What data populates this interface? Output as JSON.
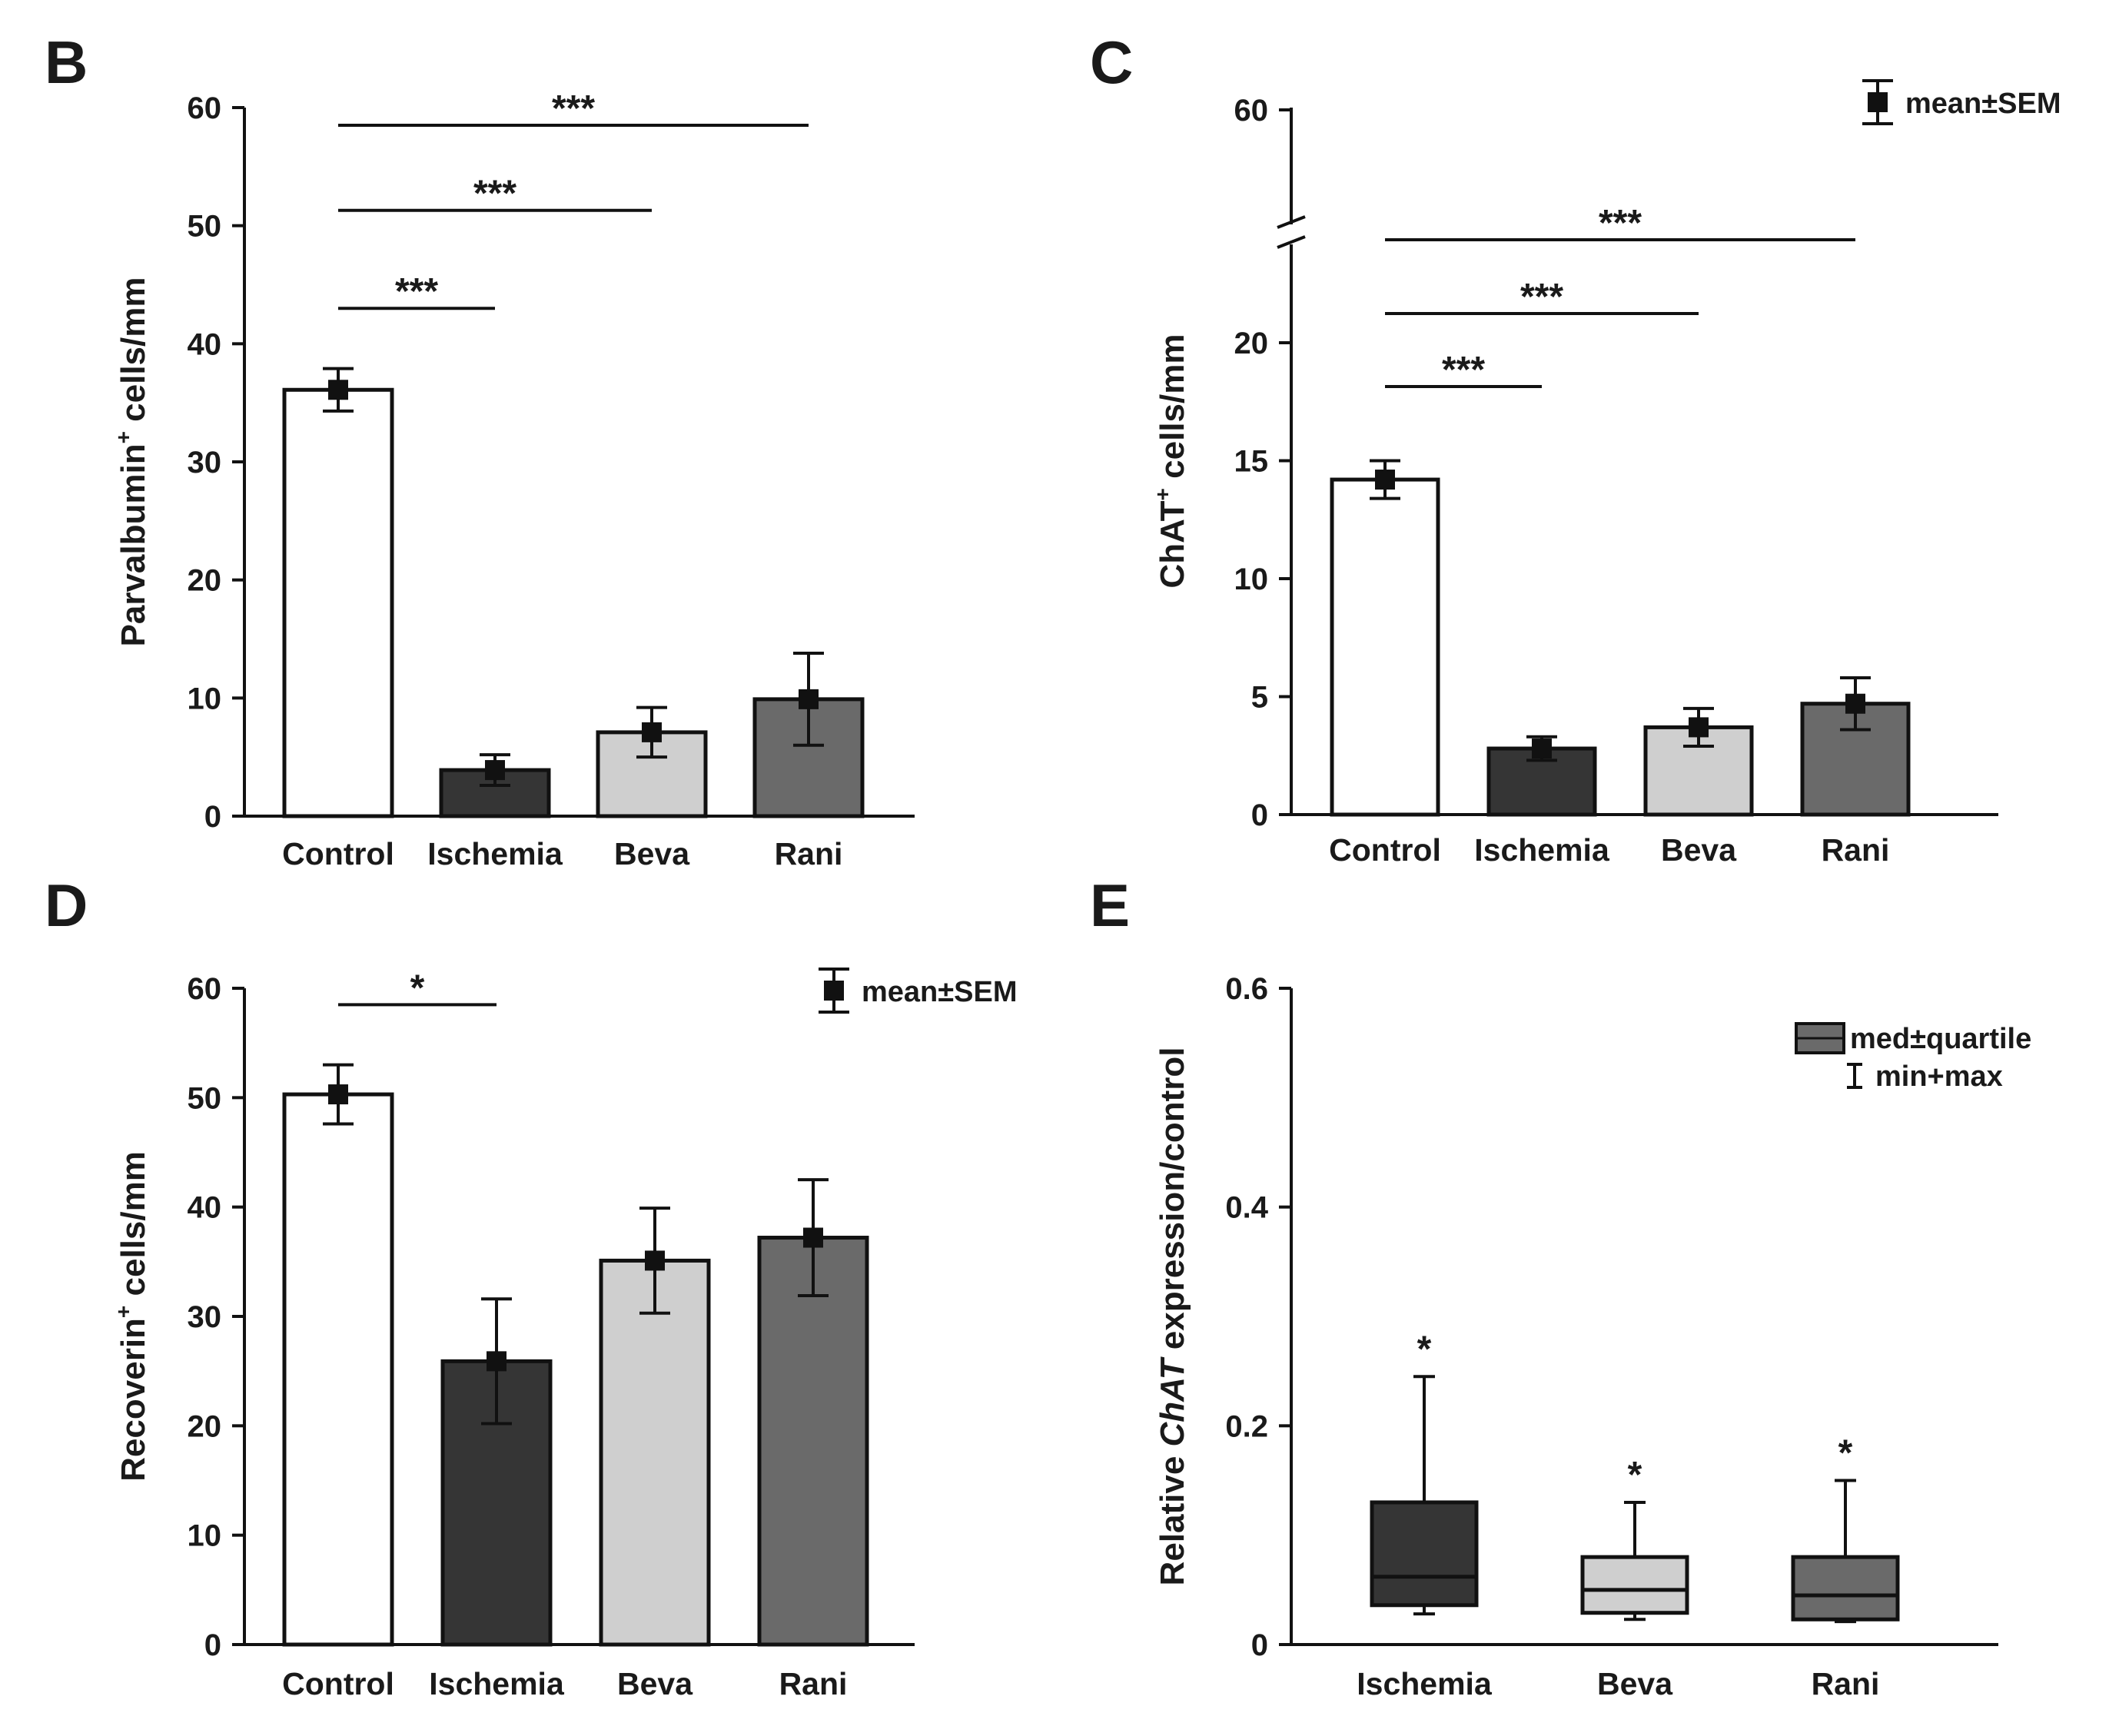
{
  "colors": {
    "Control": "#ffffff",
    "Ischemia": "#353535",
    "Beva": "#cfcfcf",
    "Rani": "#6a6a6a",
    "stroke": "#111111"
  },
  "chart_data": [
    {
      "panel": "B",
      "type": "bar",
      "categories": [
        "Control",
        "Ischemia",
        "Beva",
        "Rani"
      ],
      "values": [
        36.1,
        3.9,
        7.1,
        9.9
      ],
      "sem": [
        1.8,
        1.3,
        2.1,
        3.9
      ],
      "ylabel": "Parvalbumin",
      "ylabel_sup": "+",
      "ylabel_suffix": " cells/mm",
      "ylim": [
        0,
        60
      ],
      "yticks": [
        "0",
        "10",
        "20",
        "30",
        "40",
        "50",
        "60"
      ],
      "significance": [
        {
          "from": "Control",
          "to": "Ischemia",
          "label": "***",
          "y": 43
        },
        {
          "from": "Control",
          "to": "Beva",
          "label": "***",
          "y": 51.3
        },
        {
          "from": "Control",
          "to": "Rani",
          "label": "***",
          "y": 58.5
        }
      ]
    },
    {
      "panel": "C",
      "type": "bar",
      "categories": [
        "Control",
        "Ischemia",
        "Beva",
        "Rani"
      ],
      "values": [
        14.2,
        2.8,
        3.7,
        4.7
      ],
      "sem": [
        0.8,
        0.5,
        0.8,
        1.1
      ],
      "ylabel": "ChAT",
      "ylabel_sup": "+",
      "ylabel_suffix": " cells/mm",
      "ylim": [
        0,
        60
      ],
      "axis_break": [
        24,
        58
      ],
      "yticks": [
        "0",
        "5",
        "10",
        "15",
        "20",
        "60"
      ],
      "legend": "mean±SEM",
      "significance": [
        {
          "from": "Control",
          "to": "Ischemia",
          "label": "***",
          "y": 18.2
        },
        {
          "from": "Control",
          "to": "Beva",
          "label": "***",
          "y": 21.3
        },
        {
          "from": "Control",
          "to": "Rani",
          "label": "***",
          "y": 24.5
        }
      ]
    },
    {
      "panel": "D",
      "type": "bar",
      "categories": [
        "Control",
        "Ischemia",
        "Beva",
        "Rani"
      ],
      "values": [
        50.3,
        25.9,
        35.1,
        37.2
      ],
      "sem": [
        2.7,
        5.7,
        4.8,
        5.3
      ],
      "ylabel": "Recoverin",
      "ylabel_sup": "+",
      "ylabel_suffix": " cells/mm",
      "ylim": [
        0,
        60
      ],
      "yticks": [
        "0",
        "10",
        "20",
        "30",
        "40",
        "50",
        "60"
      ],
      "legend": "mean±SEM",
      "significance": [
        {
          "from": "Control",
          "to": "Ischemia",
          "label": "*",
          "y": 58.5
        }
      ]
    },
    {
      "panel": "E",
      "type": "box",
      "categories": [
        "Ischemia",
        "Beva",
        "Rani"
      ],
      "boxes": [
        {
          "min": 0.028,
          "q1": 0.036,
          "median": 0.062,
          "q3": 0.13,
          "max": 0.245
        },
        {
          "min": 0.023,
          "q1": 0.029,
          "median": 0.05,
          "q3": 0.08,
          "max": 0.13
        },
        {
          "min": 0.021,
          "q1": 0.023,
          "median": 0.045,
          "q3": 0.08,
          "max": 0.15
        }
      ],
      "ylabel_prefix": "Relative ",
      "ylabel_italic": "ChAT",
      "ylabel_suffix": " expression/control",
      "ylim": [
        0,
        0.6
      ],
      "yticks": [
        "0",
        "0.2",
        "0.4",
        "0.6"
      ],
      "legend_box": "med±quartile",
      "legend_whisker": "min+max",
      "stars": [
        "*",
        "*",
        "*"
      ]
    }
  ]
}
